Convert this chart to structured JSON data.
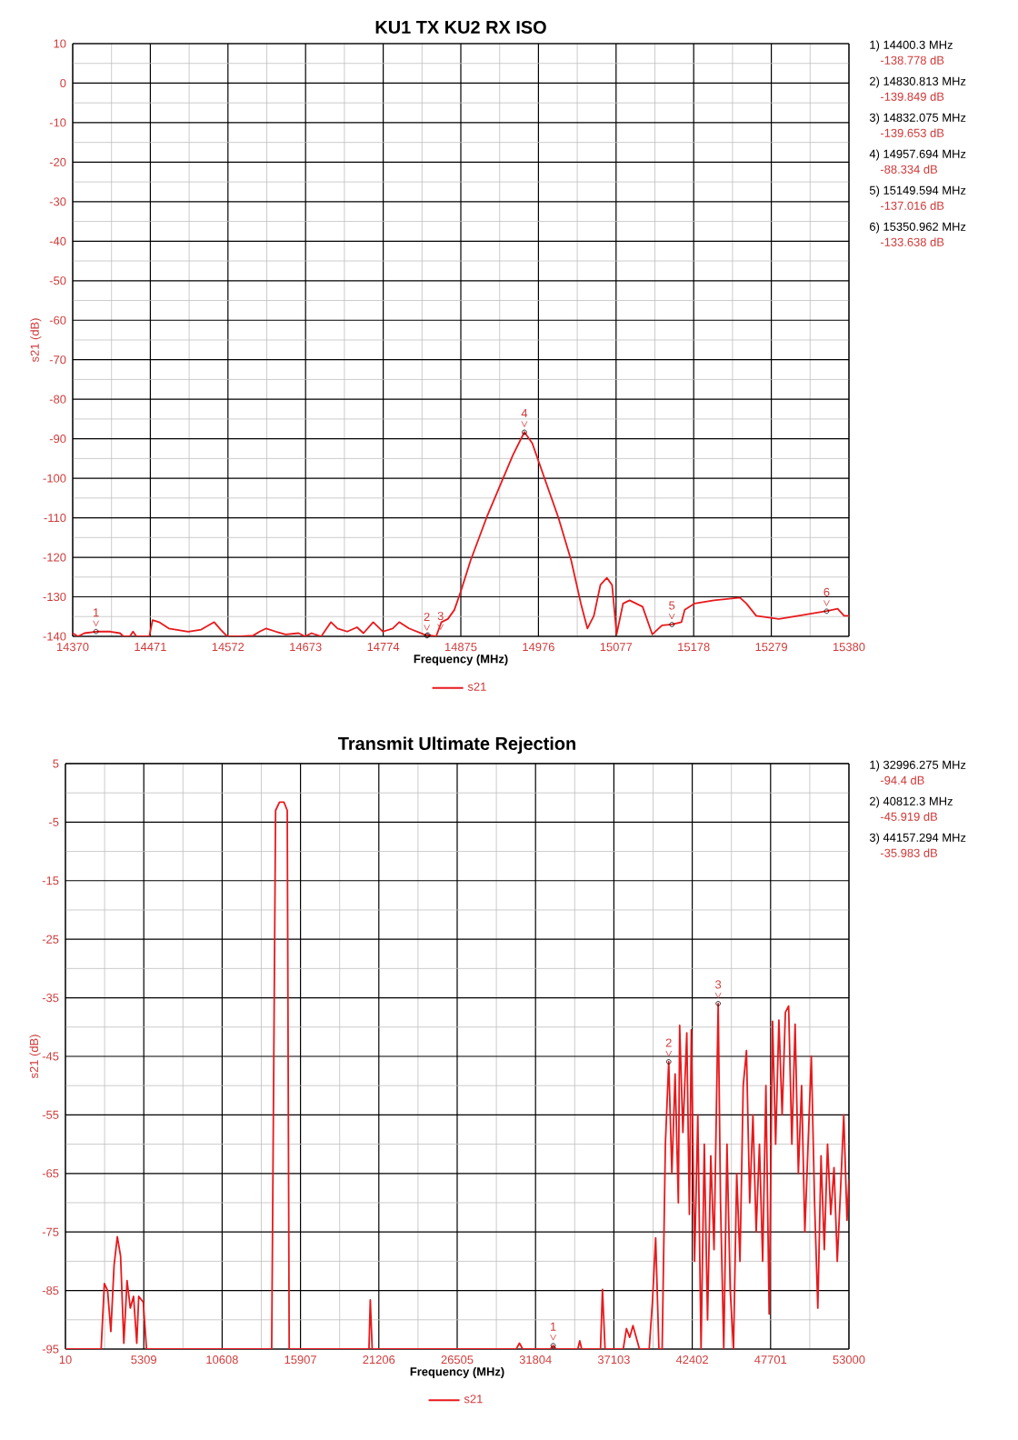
{
  "chart_data": [
    {
      "type": "line",
      "title": "KU1 TX KU2 RX ISO",
      "xlabel": "Frequency (MHz)",
      "ylabel": "s21 (dB)",
      "xlim": [
        14370,
        15380
      ],
      "ylim": [
        -140,
        10
      ],
      "xticks": [
        14370,
        14471,
        14572,
        14673,
        14774,
        14875,
        14976,
        15077,
        15178,
        15279,
        15380
      ],
      "yticks": [
        -140,
        -130,
        -120,
        -110,
        -100,
        -90,
        -80,
        -70,
        -60,
        -50,
        -40,
        -30,
        -20,
        -10,
        0,
        10
      ],
      "grid": true,
      "legend": "bottom",
      "marker": "none",
      "series": [
        {
          "name": "s21",
          "color": "#e8191c",
          "x": [
            14370,
            14376.8,
            14385.2,
            14400.3,
            14419.0,
            14431.6,
            14435.9,
            14444.3,
            14448.5,
            14452.8,
            14469.7,
            14473.9,
            14482.3,
            14495.0,
            14520.3,
            14537.2,
            14554.1,
            14562.5,
            14571.0,
            14587.9,
            14604.8,
            14613.2,
            14621.7,
            14634.3,
            14647.0,
            14663.9,
            14672.3,
            14680.8,
            14693.4,
            14706.1,
            14714.6,
            14727.2,
            14739.9,
            14748.3,
            14761.0,
            14773.7,
            14786.3,
            14794.8,
            14807.5,
            14830.813,
            14832.075,
            14842.9,
            14849.7,
            14858.1,
            14866.6,
            14875.0,
            14887.7,
            14908.8,
            14925.7,
            14942.6,
            14957.694,
            14967.9,
            14984.8,
            15001.7,
            15018.6,
            15031.2,
            15039.7,
            15048.1,
            15056.6,
            15065.0,
            15071.8,
            15077.7,
            15086.1,
            15094.6,
            15111.5,
            15124.1,
            15136.8,
            15149.594,
            15162.1,
            15166.3,
            15179.0,
            15204.4,
            15238.2,
            15246.6,
            15259.3,
            15288.8,
            15314.1,
            15350.962,
            15365.3,
            15373.7,
            15380
          ],
          "values": [
            -139.2,
            -140,
            -139.2,
            -138.8,
            -138.8,
            -139.2,
            -140,
            -140,
            -138.8,
            -140,
            -140,
            -135.9,
            -136.4,
            -138.0,
            -138.8,
            -138.3,
            -136.4,
            -138.3,
            -140,
            -140,
            -139.8,
            -138.8,
            -138.0,
            -138.8,
            -139.5,
            -139.2,
            -140,
            -139.2,
            -140,
            -136.4,
            -138.0,
            -138.8,
            -137.7,
            -139.2,
            -136.4,
            -138.8,
            -138.0,
            -136.4,
            -138.0,
            -139.8,
            -139.7,
            -140,
            -136.4,
            -135.6,
            -133.3,
            -128.6,
            -120.8,
            -109.8,
            -102.0,
            -94.2,
            -88.3,
            -91.1,
            -100.5,
            -109.8,
            -120.8,
            -131.7,
            -138.0,
            -134.8,
            -127.0,
            -125.2,
            -127.0,
            -139.5,
            -131.7,
            -130.9,
            -132.5,
            -139.5,
            -137.2,
            -137.0,
            -136.4,
            -133.3,
            -131.7,
            -130.9,
            -130.2,
            -131.7,
            -134.8,
            -135.6,
            -134.8,
            -133.6,
            -133.0,
            -134.8,
            -134.8
          ]
        }
      ],
      "annotations": [
        {
          "text": "1",
          "x": 14400.3,
          "y": -138.778
        },
        {
          "text": "2",
          "x": 14830.813,
          "y": -139.849
        },
        {
          "text": "3",
          "x": 14832.075,
          "y": -139.653
        },
        {
          "text": "4",
          "x": 14957.694,
          "y": -88.334
        },
        {
          "text": "5",
          "x": 15149.594,
          "y": -137.016
        },
        {
          "text": "6",
          "x": 15350.962,
          "y": -133.638
        },
        "1) 14400.3 MHz",
        "-138.778 dB",
        "2) 14830.813 MHz",
        "-139.849 dB",
        "3) 14832.075 MHz",
        "-139.653 dB",
        "4) 14957.694 MHz",
        "-88.334 dB",
        "5) 15149.594 MHz",
        "-137.016 dB",
        "6) 15350.962 MHz",
        "-133.638 dB"
      ]
    },
    {
      "type": "line",
      "title": "Transmit Ultimate Rejection",
      "xlabel": "Frequency (MHz)",
      "ylabel": "s21 (dB)",
      "xlim": [
        10,
        53000
      ],
      "ylim": [
        -95,
        5
      ],
      "xticks": [
        10,
        5309,
        10608,
        15907,
        21206,
        26505,
        31804,
        37103,
        42402,
        47701,
        53000
      ],
      "yticks": [
        -95,
        -85,
        -75,
        -65,
        -55,
        -45,
        -35,
        -25,
        -15,
        -5,
        5
      ],
      "grid": true,
      "legend": "bottom",
      "marker": "none",
      "series": [
        {
          "name": "s21",
          "color": "#e8191c",
          "x": [
            10,
            2423,
            2642,
            2861,
            3081,
            3300,
            3519,
            3739,
            3958,
            4177,
            4397,
            4616,
            4835,
            4967,
            5274,
            5493,
            13959,
            14223,
            14486,
            14793,
            15012,
            15144,
            20539,
            20627,
            20758,
            30497,
            30716,
            30935,
            32800,
            32996.275,
            33200,
            34664,
            34795,
            34927,
            36199,
            36331,
            36506,
            37735,
            37954,
            38173,
            38393,
            38612,
            38832,
            39489,
            39709,
            39928,
            40148,
            40367,
            40586,
            40812.3,
            41025,
            41244,
            41464,
            41551,
            41771,
            42034,
            42209,
            42341,
            42560,
            42780,
            42999,
            43218,
            43437,
            43657,
            43876,
            44157.294,
            44315,
            44534,
            44753,
            44973,
            45192,
            45411,
            45631,
            45850,
            46069,
            46289,
            46508,
            46727,
            46947,
            47166,
            47385,
            47605,
            47834,
            48043,
            48263,
            48482,
            48702,
            48921,
            49140,
            49360,
            49579,
            49798,
            50018,
            50237,
            50456,
            50676,
            50895,
            51114,
            51334,
            51553,
            51772,
            51992,
            52211,
            52430,
            52650,
            52869,
            53000
          ],
          "values": [
            -95,
            -95,
            -83.8,
            -85,
            -92,
            -80.7,
            -75.8,
            -79.1,
            -94,
            -83.3,
            -88,
            -86,
            -94,
            -86,
            -87,
            -95,
            -95,
            -3,
            -1.6,
            -1.6,
            -3,
            -95,
            -95,
            -86.6,
            -95,
            -95,
            -94,
            -95,
            -95,
            -94.4,
            -95,
            -95,
            -93.6,
            -95,
            -95,
            -84.8,
            -95,
            -95,
            -91.5,
            -93,
            -91,
            -93,
            -95,
            -95,
            -87,
            -76,
            -95,
            -95,
            -60,
            -45.9,
            -65,
            -48,
            -70,
            -39.7,
            -58,
            -41,
            -72,
            -40.5,
            -80,
            -55,
            -95,
            -60,
            -90,
            -62,
            -78,
            -36.0,
            -70,
            -95,
            -60,
            -85,
            -95,
            -65,
            -80,
            -50,
            -44,
            -70,
            -55,
            -75,
            -60,
            -80,
            -50,
            -89,
            -39,
            -60,
            -38.8,
            -55,
            -37.5,
            -36.4,
            -60,
            -39.5,
            -65,
            -50,
            -75,
            -60,
            -45,
            -70,
            -88,
            -62,
            -78,
            -60,
            -72,
            -64,
            -80,
            -68,
            -55,
            -73,
            -66
          ]
        }
      ],
      "annotations": [
        {
          "text": "1",
          "x": 32996.275,
          "y": -94.4
        },
        {
          "text": "2",
          "x": 40812.3,
          "y": -45.919
        },
        {
          "text": "3",
          "x": 44157.294,
          "y": -35.983
        },
        "1) 32996.275 MHz",
        "-94.4 dB",
        "2) 40812.3 MHz",
        "-45.919 dB",
        "3) 44157.294 MHz",
        "-35.983 dB"
      ]
    }
  ]
}
